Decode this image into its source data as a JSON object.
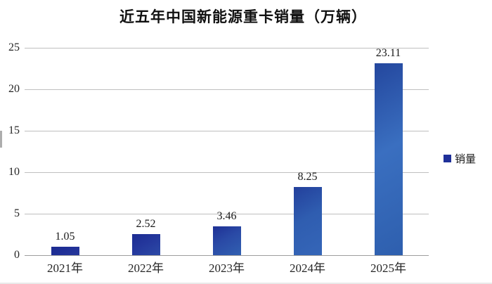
{
  "title": "近五年中国新能源重卡销量（万辆）",
  "legend": {
    "label": "销量",
    "swatch_color": "#1f3099"
  },
  "colors": {
    "gridline": "#bfbfbf",
    "axis_line": "#9e9e9e",
    "text": "#262626",
    "title_text": "#111111"
  },
  "chart_data": {
    "type": "bar",
    "title": "近五年中国新能源重卡销量（万辆）",
    "categories": [
      "2021年",
      "2022年",
      "2023年",
      "2024年",
      "2025年"
    ],
    "values": [
      1.05,
      2.52,
      3.46,
      8.25,
      23.11
    ],
    "data_labels": [
      "1.05",
      "2.52",
      "3.46",
      "8.25",
      "23.11"
    ],
    "series_name": "销量",
    "xlabel": "",
    "ylabel": "",
    "ylim": [
      0,
      25
    ],
    "yticks": [
      0,
      5,
      10,
      15,
      20,
      25
    ],
    "grid": true,
    "legend_position": "right",
    "bar_gradients": [
      {
        "from": "#1c2b90",
        "mid": "#1f2f96",
        "to": "#27389b"
      },
      {
        "from": "#1c2c92",
        "mid": "#24379c",
        "to": "#2c4aa6"
      },
      {
        "from": "#1e3095",
        "mid": "#2a4aa6",
        "to": "#3160b1"
      },
      {
        "from": "#23409c",
        "mid": "#2f5db0",
        "to": "#3566b8"
      },
      {
        "from": "#24479e",
        "mid": "#3a6fc0",
        "to": "#2e5fae"
      }
    ]
  }
}
